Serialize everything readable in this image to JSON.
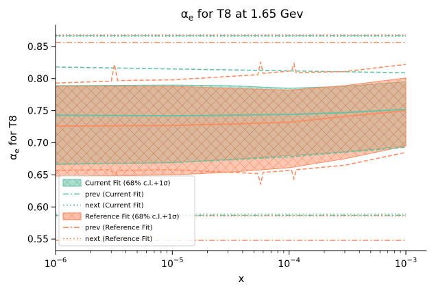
{
  "chart_data": {
    "type": "line",
    "title": "αₑ for T8 at 1.65 Gev",
    "title_main": "α",
    "title_sub": "e",
    "title_rest": " for T8 at 1.65 Gev",
    "xlabel": "x",
    "ylabel_main": "α",
    "ylabel_sub": "e",
    "ylabel_rest": " for T8",
    "x_scale": "log",
    "xlim": [
      1e-06,
      0.0015
    ],
    "ylim": [
      0.532,
      0.884
    ],
    "grid": false,
    "legend_position": "lower-left",
    "x_ticks": [
      {
        "value": 1e-06,
        "base": "10",
        "exp": "−6"
      },
      {
        "value": 1e-05,
        "base": "10",
        "exp": "−5"
      },
      {
        "value": 0.0001,
        "base": "10",
        "exp": "−4"
      },
      {
        "value": 0.001,
        "base": "10",
        "exp": "−3"
      }
    ],
    "y_ticks": [
      "0.55",
      "0.60",
      "0.65",
      "0.70",
      "0.75",
      "0.80",
      "0.85"
    ],
    "colors": {
      "current": "#66c2a5",
      "reference": "#fc8d62"
    },
    "series": [
      {
        "name": "Current Fit (68% c.l.+1σ)",
        "kind": "band",
        "x": [
          1e-06,
          1e-05,
          3e-05,
          0.0001,
          0.0003,
          0.001
        ],
        "central": [
          0.743,
          0.742,
          0.743,
          0.744,
          0.747,
          0.752
        ],
        "upper": [
          0.789,
          0.79,
          0.789,
          0.785,
          0.788,
          0.795
        ],
        "lower": [
          0.666,
          0.669,
          0.674,
          0.68,
          0.686,
          0.695
        ]
      },
      {
        "name": "prev (Current Fit)",
        "kind": "line",
        "x": [
          1e-06,
          1e-05,
          0.0001,
          0.001
        ],
        "lines": [
          [
            0.818,
            0.815,
            0.812,
            0.809
          ],
          [
            0.667,
            0.669,
            0.678,
            0.693
          ]
        ],
        "constants": [
          0.867,
          0.587
        ]
      },
      {
        "name": "next (Current Fit)",
        "kind": "const",
        "constants": [
          0.866,
          0.589
        ]
      },
      {
        "name": "Reference Fit (68% c.l.+1σ)",
        "kind": "band",
        "x": [
          1e-06,
          1e-05,
          3e-05,
          0.0001,
          0.0003,
          0.001
        ],
        "central": [
          0.726,
          0.727,
          0.729,
          0.732,
          0.741,
          0.75
        ],
        "upper": [
          0.788,
          0.788,
          0.785,
          0.782,
          0.789,
          0.801
        ],
        "lower": [
          0.648,
          0.65,
          0.654,
          0.661,
          0.675,
          0.695
        ]
      },
      {
        "name": "prev (Reference Fit)",
        "kind": "line",
        "x": [
          1e-06,
          3e-06,
          3.2e-06,
          3.4e-06,
          1e-05,
          5.4e-05,
          5.7e-05,
          6e-05,
          0.000105,
          0.00011,
          0.000115,
          0.0003,
          0.001
        ],
        "upper_line": [
          0.793,
          0.796,
          0.822,
          0.797,
          0.798,
          0.806,
          0.826,
          0.808,
          0.812,
          0.823,
          0.809,
          0.811,
          0.822
        ],
        "lower_line": [
          0.657,
          0.658,
          0.645,
          0.657,
          0.658,
          0.652,
          0.635,
          0.654,
          0.657,
          0.644,
          0.658,
          0.665,
          0.685
        ],
        "constants": [
          0.856,
          0.548
        ]
      },
      {
        "name": "next (Reference Fit)",
        "kind": "const",
        "constants": [
          0.868,
          0.586
        ]
      }
    ]
  }
}
